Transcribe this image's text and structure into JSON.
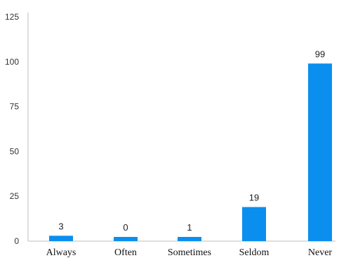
{
  "chart_data": {
    "type": "bar",
    "categories": [
      "Always",
      "Often",
      "Sometimes",
      "Seldom",
      "Never"
    ],
    "values": [
      3,
      0,
      1,
      19,
      99
    ],
    "data_labels": [
      "3",
      "0",
      "1",
      "19",
      "99"
    ],
    "y_ticks": [
      0,
      25,
      50,
      75,
      100,
      125
    ],
    "ylim": [
      0,
      125
    ],
    "grid": false,
    "legend": "none",
    "bar_color": "#0a8fef",
    "title": "",
    "xlabel": "",
    "ylabel": ""
  }
}
